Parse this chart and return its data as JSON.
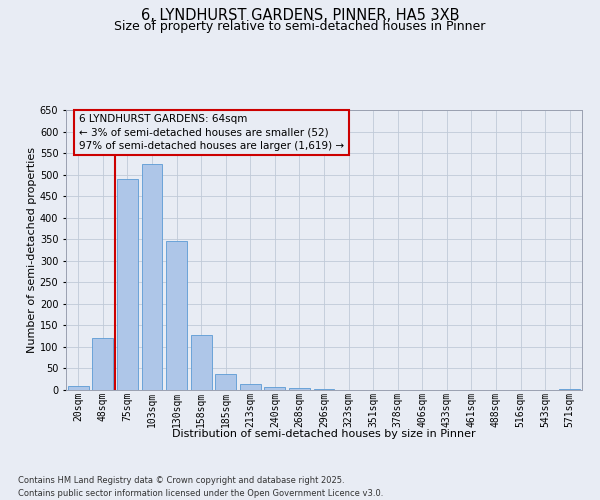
{
  "title_line1": "6, LYNDHURST GARDENS, PINNER, HA5 3XB",
  "title_line2": "Size of property relative to semi-detached houses in Pinner",
  "xlabel": "Distribution of semi-detached houses by size in Pinner",
  "ylabel": "Number of semi-detached properties",
  "categories": [
    "20sqm",
    "48sqm",
    "75sqm",
    "103sqm",
    "130sqm",
    "158sqm",
    "185sqm",
    "213sqm",
    "240sqm",
    "268sqm",
    "296sqm",
    "323sqm",
    "351sqm",
    "378sqm",
    "406sqm",
    "433sqm",
    "461sqm",
    "488sqm",
    "516sqm",
    "543sqm",
    "571sqm"
  ],
  "values": [
    10,
    120,
    490,
    525,
    345,
    128,
    38,
    15,
    8,
    5,
    2,
    1,
    0,
    1,
    0,
    0,
    0,
    0,
    0,
    0,
    3
  ],
  "bar_color": "#aec6e8",
  "bar_edge_color": "#5b9bd5",
  "vline_color": "#cc0000",
  "vline_x_index": 1,
  "annotation_text": "6 LYNDHURST GARDENS: 64sqm\n← 3% of semi-detached houses are smaller (52)\n97% of semi-detached houses are larger (1,619) →",
  "annot_box_color": "#cc0000",
  "ylim_max": 650,
  "ytick_step": 50,
  "grid_color": "#c0cad8",
  "bg_color": "#e8ecf4",
  "footer_text": "Contains HM Land Registry data © Crown copyright and database right 2025.\nContains public sector information licensed under the Open Government Licence v3.0.",
  "title_fontsize": 10.5,
  "subtitle_fontsize": 9,
  "tick_fontsize": 7,
  "ylabel_fontsize": 8,
  "xlabel_fontsize": 8,
  "annot_fontsize": 7.5,
  "footer_fontsize": 6
}
